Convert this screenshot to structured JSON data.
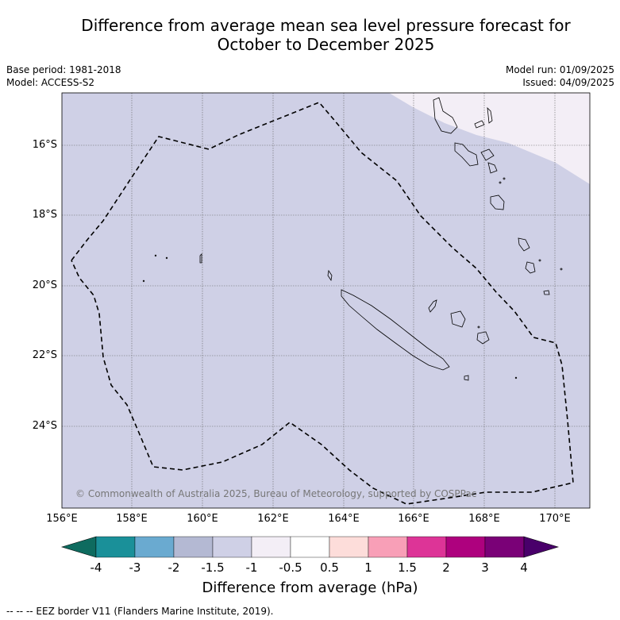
{
  "title_line1": "Difference from average mean sea level pressure forecast for",
  "title_line2": "October to December 2025",
  "meta": {
    "base_period": "Base period: 1981-2018",
    "model": "Model: ACCESS-S2",
    "model_run": "Model run: 01/09/2025",
    "issued": "Issued: 04/09/2025"
  },
  "map": {
    "lat_labels": [
      "16°S",
      "18°S",
      "20°S",
      "22°S",
      "24°S"
    ],
    "lon_labels": [
      "156°E",
      "158°E",
      "160°E",
      "162°E",
      "164°E",
      "166°E",
      "168°E",
      "170°E"
    ],
    "copyright": "© Commonwealth of Australia 2025, Bureau of Meteorology, supported by COSPPac",
    "fill_colors": {
      "main": "#cfd0e6",
      "light": "#f3eef6"
    }
  },
  "colorbar": {
    "ticks": [
      "-4",
      "-3",
      "-2",
      "-1.5",
      "-1",
      "-0.5",
      "0.5",
      "1",
      "1.5",
      "2",
      "3",
      "4"
    ],
    "colors": [
      "#0e6b5f",
      "#1a9099",
      "#6aaad0",
      "#b4b9d3",
      "#cfd0e6",
      "#f3eef6",
      "#ffffff",
      "#fdddda",
      "#f89fb7",
      "#dd3497",
      "#ae017e",
      "#7a0177",
      "#49006a"
    ],
    "label": "Difference from average (hPa)"
  },
  "footer": "--  --  -- EEZ border V11 (Flanders Marine Institute, 2019)."
}
